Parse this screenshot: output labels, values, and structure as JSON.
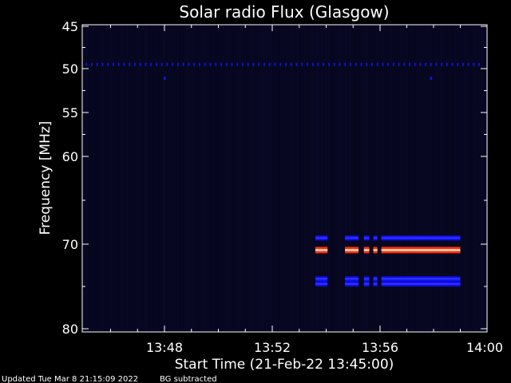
{
  "chart_data": {
    "type": "heatmap",
    "title": "Solar radio Flux (Glasgow)",
    "xlabel": "Start Time (21-Feb-22 13:45:00)",
    "ylabel": "Frequency [MHz]",
    "x_ticks": [
      "13:48",
      "13:52",
      "13:56",
      "14:00"
    ],
    "x_tick_minutes": [
      48,
      52,
      56,
      60
    ],
    "xlim_minutes": [
      45,
      60
    ],
    "ylim_mhz": [
      45,
      80
    ],
    "y_ticks": [
      {
        "label": "45",
        "value": 45
      },
      {
        "label": "50",
        "value": 50
      },
      {
        "label": "55",
        "value": 55
      },
      {
        "label": "60",
        "value": 60
      },
      {
        "label": "70",
        "value": 70
      },
      {
        "label": "80",
        "value": 80
      }
    ],
    "colors": {
      "background": "#000000",
      "plot_background": "#06061e",
      "weak": "#1010ff",
      "strong": "#ff3010",
      "peak": "#ffe0c0"
    },
    "features": [
      {
        "kind": "dashed-line",
        "freq_mhz": 49.5,
        "start_min": 45.1,
        "end_min": 59.9,
        "color": "#1414e0"
      },
      {
        "kind": "band",
        "freq_mhz": 69.3,
        "start_min": 53.6,
        "end_min": 59.0,
        "intensity": "weak"
      },
      {
        "kind": "band",
        "freq_mhz": 70.7,
        "start_min": 53.6,
        "end_min": 59.0,
        "intensity": "strong"
      },
      {
        "kind": "band",
        "freq_mhz": 74.1,
        "start_min": 53.6,
        "end_min": 59.0,
        "intensity": "weak"
      },
      {
        "kind": "band",
        "freq_mhz": 74.7,
        "start_min": 53.6,
        "end_min": 59.0,
        "intensity": "weak"
      }
    ]
  },
  "footer": {
    "updated": "Updated Tue Mar  8 21:15:09 2022",
    "note": "BG subtracted"
  }
}
